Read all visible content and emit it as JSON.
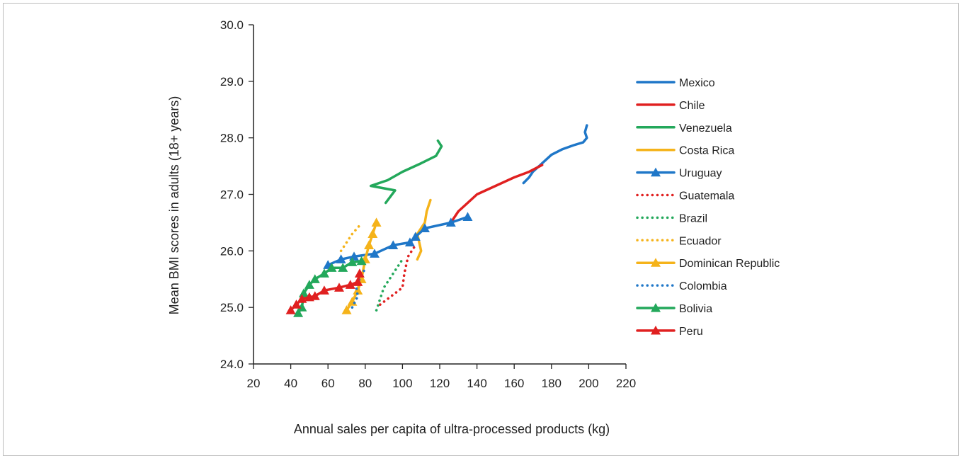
{
  "chart_data": {
    "type": "line",
    "title": "",
    "xlabel": "Annual sales per capita of ultra-processed products (kg)",
    "ylabel": "Mean BMI scores  in adults (18+ years)",
    "xlim": [
      20,
      220
    ],
    "ylim": [
      24.0,
      30.0
    ],
    "xticks": [
      "20",
      "40",
      "60",
      "80",
      "100",
      "120",
      "140",
      "160",
      "180",
      "200",
      "220"
    ],
    "yticks": [
      "24.0",
      "25.0",
      "26.0",
      "27.0",
      "28.0",
      "29.0",
      "30.0"
    ],
    "legend_position": "right",
    "grid": false,
    "series": [
      {
        "name": "Mexico",
        "color": "#1F77C8",
        "style": "solid",
        "marker": "none",
        "points": [
          [
            165,
            27.2
          ],
          [
            168,
            27.3
          ],
          [
            170,
            27.4
          ],
          [
            175,
            27.55
          ],
          [
            180,
            27.7
          ],
          [
            186,
            27.8
          ],
          [
            192,
            27.87
          ],
          [
            197,
            27.92
          ],
          [
            199,
            28.0
          ],
          [
            198,
            28.1
          ],
          [
            199,
            28.22
          ]
        ]
      },
      {
        "name": "Chile",
        "color": "#E02020",
        "style": "solid",
        "marker": "none",
        "points": [
          [
            127,
            26.55
          ],
          [
            130,
            26.7
          ],
          [
            135,
            26.85
          ],
          [
            140,
            27.0
          ],
          [
            150,
            27.15
          ],
          [
            160,
            27.3
          ],
          [
            168,
            27.4
          ],
          [
            175,
            27.52
          ]
        ]
      },
      {
        "name": "Venezuela",
        "color": "#23A85B",
        "style": "solid",
        "marker": "none",
        "points": [
          [
            91,
            26.85
          ],
          [
            96,
            27.07
          ],
          [
            83,
            27.15
          ],
          [
            92,
            27.25
          ],
          [
            100,
            27.4
          ],
          [
            110,
            27.55
          ],
          [
            118,
            27.68
          ],
          [
            121,
            27.85
          ],
          [
            119,
            27.95
          ]
        ]
      },
      {
        "name": "Costa Rica",
        "color": "#F5B31A",
        "style": "solid",
        "marker": "none",
        "points": [
          [
            108,
            25.85
          ],
          [
            110,
            26.0
          ],
          [
            108,
            26.3
          ],
          [
            112,
            26.5
          ],
          [
            113,
            26.7
          ],
          [
            115,
            26.9
          ]
        ]
      },
      {
        "name": "Uruguay",
        "color": "#1F77C8",
        "style": "solid",
        "marker": "triangle",
        "points": [
          [
            60,
            25.75
          ],
          [
            67,
            25.85
          ],
          [
            74,
            25.9
          ],
          [
            85,
            25.95
          ],
          [
            95,
            26.1
          ],
          [
            104,
            26.15
          ],
          [
            107,
            26.25
          ],
          [
            112,
            26.4
          ],
          [
            126,
            26.5
          ],
          [
            135,
            26.6
          ]
        ]
      },
      {
        "name": "Guatemala",
        "color": "#E02020",
        "style": "dotted",
        "marker": "none",
        "points": [
          [
            88,
            25.05
          ],
          [
            92,
            25.15
          ],
          [
            96,
            25.25
          ],
          [
            100,
            25.35
          ],
          [
            101,
            25.6
          ],
          [
            103,
            25.9
          ],
          [
            105,
            26.0
          ],
          [
            107,
            26.1
          ]
        ]
      },
      {
        "name": "Brazil",
        "color": "#23A85B",
        "style": "dotted",
        "marker": "none",
        "points": [
          [
            86,
            24.95
          ],
          [
            88,
            25.15
          ],
          [
            90,
            25.35
          ],
          [
            93,
            25.5
          ],
          [
            97,
            25.7
          ],
          [
            100,
            25.85
          ]
        ]
      },
      {
        "name": "Ecuador",
        "color": "#F5B31A",
        "style": "dotted",
        "marker": "none",
        "points": [
          [
            67,
            26.0
          ],
          [
            70,
            26.15
          ],
          [
            73,
            26.3
          ],
          [
            77,
            26.45
          ]
        ]
      },
      {
        "name": "Dominican Republic",
        "color": "#F5B31A",
        "style": "solid",
        "marker": "triangle",
        "points": [
          [
            70,
            24.95
          ],
          [
            73,
            25.1
          ],
          [
            76,
            25.3
          ],
          [
            78,
            25.5
          ],
          [
            80,
            25.85
          ],
          [
            82,
            26.1
          ],
          [
            84,
            26.3
          ],
          [
            86,
            26.5
          ]
        ]
      },
      {
        "name": "Colombia",
        "color": "#1F77C8",
        "style": "dotted",
        "marker": "none",
        "points": [
          [
            73,
            25.0
          ],
          [
            76,
            25.2
          ],
          [
            75,
            25.4
          ],
          [
            78,
            25.55
          ],
          [
            80,
            25.7
          ]
        ]
      },
      {
        "name": "Bolivia",
        "color": "#23A85B",
        "style": "solid",
        "marker": "triangle",
        "points": [
          [
            44,
            24.9
          ],
          [
            46,
            25.0
          ],
          [
            47,
            25.25
          ],
          [
            50,
            25.4
          ],
          [
            53,
            25.5
          ],
          [
            58,
            25.6
          ],
          [
            62,
            25.7
          ],
          [
            68,
            25.7
          ],
          [
            73,
            25.8
          ],
          [
            78,
            25.82
          ]
        ]
      },
      {
        "name": "Peru",
        "color": "#E02020",
        "style": "solid",
        "marker": "triangle",
        "points": [
          [
            40,
            24.95
          ],
          [
            43,
            25.05
          ],
          [
            46,
            25.15
          ],
          [
            50,
            25.18
          ],
          [
            53,
            25.2
          ],
          [
            58,
            25.3
          ],
          [
            66,
            25.35
          ],
          [
            72,
            25.4
          ],
          [
            76,
            25.45
          ],
          [
            77,
            25.6
          ]
        ]
      }
    ]
  }
}
